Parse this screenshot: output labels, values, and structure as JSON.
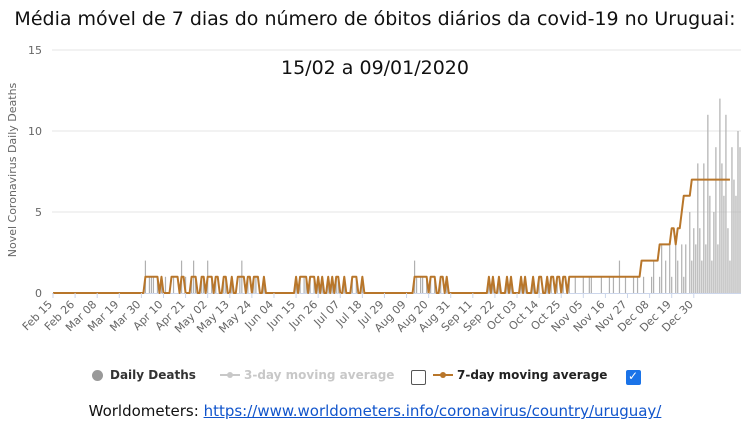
{
  "title_line1": "Média móvel de 7 dias do número de óbitos diários da covid-19 no Uruguai:",
  "title_line2": "15/02 a 09/01/2020",
  "source_prefix": "Worldometers:",
  "source_link": "https://www.worldometers.info/coronavirus/country/uruguay/",
  "legend": {
    "daily": "Daily Deaths",
    "ma3": "3-day moving average",
    "ma7": "7-day moving average"
  },
  "colors": {
    "daily_bar": "#b0b0b0",
    "ma7_line": "#b8762a",
    "ma3_disabled": "#c8c8c8",
    "checkbox_checked": "#1a73e8"
  },
  "chart_data": {
    "type": "bar",
    "ylabel": "Novel Coronavirus Daily Deaths",
    "ylim": [
      0,
      15
    ],
    "yticks": [
      0,
      5,
      10,
      15
    ],
    "xtick_labels": [
      "Feb 15",
      "Feb 26",
      "Mar 08",
      "Mar 19",
      "Mar 30",
      "Apr 10",
      "Apr 21",
      "May 02",
      "May 13",
      "May 24",
      "Jun 04",
      "Jun 15",
      "Jun 26",
      "Jul 07",
      "Jul 18",
      "Jul 29",
      "Aug 09",
      "Aug 20",
      "Aug 31",
      "Sep 11",
      "Sep 22",
      "Oct 03",
      "Oct 14",
      "Oct 25",
      "Nov 05",
      "Nov 16",
      "Nov 27",
      "Dec 08",
      "Dec 19",
      "Dec 30"
    ],
    "start_date": "Feb 15",
    "series": [
      {
        "name": "Daily Deaths",
        "style": "bar",
        "values": [
          0,
          0,
          0,
          0,
          0,
          0,
          0,
          0,
          0,
          0,
          0,
          0,
          0,
          0,
          0,
          0,
          0,
          0,
          0,
          0,
          0,
          0,
          0,
          0,
          0,
          0,
          0,
          0,
          0,
          0,
          0,
          0,
          0,
          0,
          0,
          0,
          0,
          0,
          0,
          0,
          0,
          0,
          0,
          0,
          0,
          0,
          2,
          0,
          1,
          1,
          1,
          0,
          1,
          0,
          1,
          0,
          1,
          0,
          0,
          0,
          1,
          0,
          0,
          0,
          2,
          0,
          1,
          0,
          0,
          1,
          2,
          1,
          0,
          0,
          1,
          1,
          0,
          2,
          0,
          1,
          0,
          1,
          0,
          0,
          0,
          1,
          1,
          0,
          0,
          1,
          0,
          0,
          0,
          1,
          2,
          0,
          0,
          1,
          0,
          0,
          1,
          1,
          0,
          0,
          0,
          1,
          0,
          0,
          0,
          0,
          0,
          0,
          0,
          0,
          0,
          0,
          0,
          0,
          0,
          0,
          0,
          1,
          0,
          1,
          0,
          1,
          1,
          0,
          1,
          0,
          1,
          0,
          1,
          0,
          1,
          0,
          0,
          1,
          0,
          1,
          0,
          1,
          1,
          0,
          0,
          1,
          0,
          0,
          0,
          1,
          0,
          1,
          0,
          0,
          1,
          0,
          0,
          0,
          0,
          0,
          0,
          0,
          0,
          0,
          0,
          0,
          0,
          0,
          0,
          0,
          0,
          0,
          0,
          0,
          0,
          0,
          0,
          0,
          0,
          0,
          2,
          1,
          0,
          1,
          1,
          0,
          1,
          0,
          1,
          0,
          1,
          0,
          0,
          1,
          0,
          0,
          1,
          0,
          0,
          0,
          0,
          0,
          0,
          0,
          0,
          0,
          0,
          0,
          0,
          0,
          0,
          0,
          0,
          0,
          0,
          0,
          0,
          1,
          0,
          1,
          0,
          0,
          1,
          0,
          0,
          0,
          1,
          0,
          1,
          0,
          0,
          0,
          0,
          1,
          0,
          1,
          0,
          0,
          0,
          1,
          0,
          0,
          1,
          0,
          0,
          0,
          1,
          0,
          1,
          0,
          0,
          1,
          0,
          0,
          1,
          0,
          0,
          1,
          0,
          0,
          1,
          0,
          0,
          0,
          1,
          0,
          0,
          1,
          1,
          0,
          0,
          0,
          0,
          1,
          0,
          0,
          0,
          1,
          0,
          1,
          0,
          0,
          2,
          0,
          0,
          1,
          0,
          0,
          0,
          1,
          0,
          1,
          0,
          0,
          1,
          0,
          0,
          0,
          1,
          2,
          0,
          0,
          1,
          3,
          0,
          2,
          0,
          3,
          1,
          0,
          3,
          2,
          0,
          3,
          1,
          3,
          0,
          5,
          2,
          4,
          3,
          8,
          4,
          2,
          8,
          3,
          11,
          6,
          2,
          5,
          9,
          3,
          12,
          8,
          6,
          11,
          4,
          2,
          9,
          7,
          6,
          10,
          9
        ],
        "color": "#b0b0b0"
      },
      {
        "name": "7-day moving average",
        "style": "line",
        "values": [
          0,
          0,
          0,
          0,
          0,
          0,
          0,
          0,
          0,
          0,
          0,
          0,
          0,
          0,
          0,
          0,
          0,
          0,
          0,
          0,
          0,
          0,
          0,
          0,
          0,
          0,
          0,
          0,
          0,
          0,
          0,
          0,
          0,
          0,
          0,
          0,
          0,
          0,
          0,
          0,
          0,
          0,
          0,
          0,
          0,
          0,
          1,
          1,
          1,
          1,
          1,
          1,
          1,
          0,
          1,
          0,
          0,
          0,
          0,
          1,
          1,
          1,
          1,
          0,
          1,
          1,
          0,
          0,
          0,
          1,
          1,
          1,
          0,
          0,
          1,
          1,
          0,
          1,
          1,
          1,
          0,
          1,
          1,
          0,
          0,
          1,
          1,
          0,
          0,
          1,
          0,
          0,
          1,
          1,
          1,
          1,
          0,
          1,
          1,
          0,
          1,
          1,
          1,
          0,
          0,
          1,
          0,
          0,
          0,
          0,
          0,
          0,
          0,
          0,
          0,
          0,
          0,
          0,
          0,
          0,
          0,
          1,
          0,
          1,
          1,
          1,
          1,
          0,
          1,
          1,
          1,
          0,
          1,
          0,
          1,
          0,
          0,
          1,
          0,
          1,
          0,
          1,
          1,
          0,
          0,
          1,
          0,
          0,
          0,
          1,
          1,
          1,
          0,
          0,
          1,
          0,
          0,
          0,
          0,
          0,
          0,
          0,
          0,
          0,
          0,
          0,
          0,
          0,
          0,
          0,
          0,
          0,
          0,
          0,
          0,
          0,
          0,
          0,
          0,
          0,
          1,
          1,
          1,
          1,
          1,
          1,
          1,
          0,
          1,
          1,
          1,
          0,
          0,
          1,
          1,
          0,
          1,
          0,
          0,
          0,
          0,
          0,
          0,
          0,
          0,
          0,
          0,
          0,
          0,
          0,
          0,
          0,
          0,
          0,
          0,
          0,
          0,
          1,
          0,
          1,
          0,
          0,
          1,
          0,
          0,
          0,
          1,
          0,
          1,
          0,
          0,
          0,
          0,
          1,
          0,
          1,
          0,
          0,
          0,
          1,
          0,
          0,
          1,
          1,
          0,
          0,
          1,
          0,
          1,
          1,
          0,
          1,
          1,
          0,
          1,
          1,
          0,
          1,
          1,
          1,
          1,
          1,
          1,
          1,
          1,
          1,
          1,
          1,
          1,
          1,
          1,
          1,
          1,
          1,
          1,
          1,
          1,
          1,
          1,
          1,
          1,
          1,
          1,
          1,
          1,
          1,
          1,
          1,
          1,
          1,
          1,
          1,
          1,
          2,
          2,
          2,
          2,
          2,
          2,
          2,
          2,
          2,
          3,
          3,
          3,
          3,
          3,
          3,
          4,
          4,
          3,
          4,
          4,
          5,
          6,
          6,
          6,
          6,
          7,
          7,
          7,
          7,
          7,
          7,
          7,
          7,
          7,
          7,
          7,
          7,
          7,
          7,
          7,
          7,
          7,
          7,
          7,
          7
        ],
        "color": "#b8762a"
      }
    ],
    "legend": [
      "Daily Deaths",
      "3-day moving average",
      "7-day moving average"
    ],
    "legend_position": "bottom",
    "grid": "horizontal"
  }
}
